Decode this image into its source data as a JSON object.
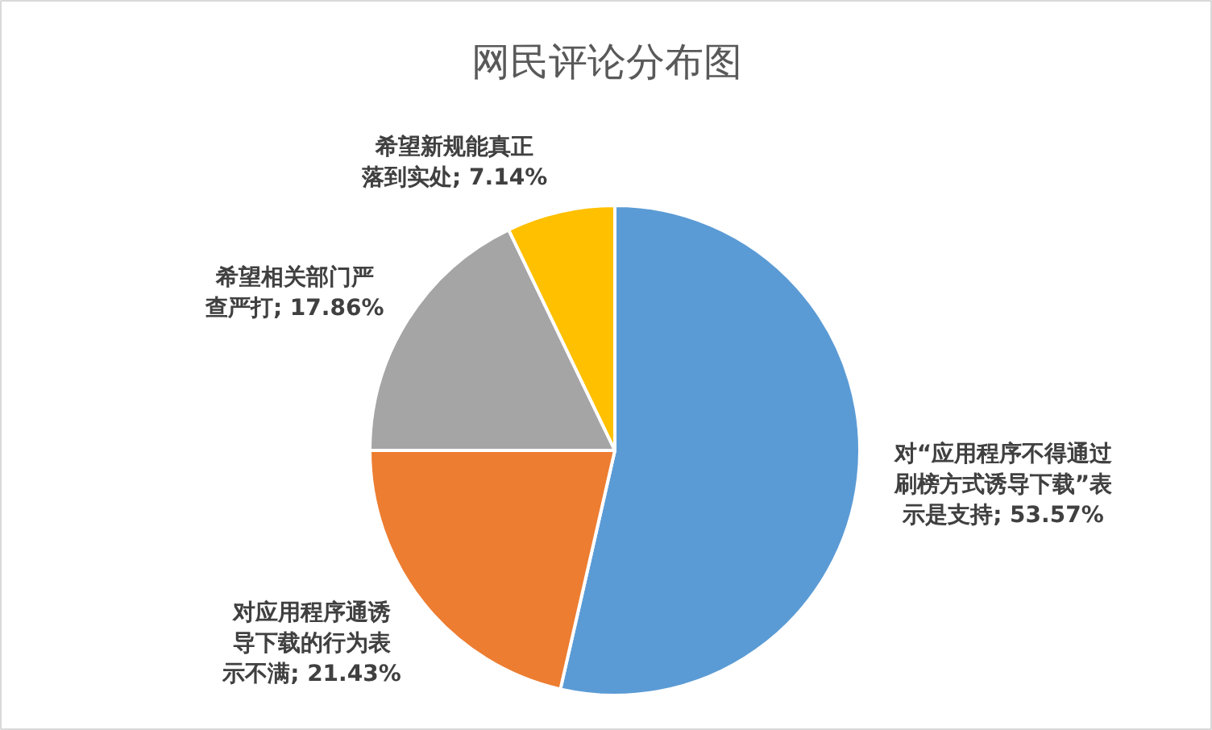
{
  "chart_data": {
    "type": "pie",
    "title": "网民评论分布图",
    "categories": [
      "对“应用程序不得通过刷榜方式诱导下载”表示是支持",
      "对应用程序通诱导下载的行为表示不满",
      "希望相关部门严查严打",
      "希望新规能真正落到实处"
    ],
    "values": [
      53.57,
      21.43,
      17.86,
      7.14
    ],
    "value_labels": [
      "53.57%",
      "21.43%",
      "17.86%",
      "7.14%"
    ],
    "colors": [
      "#5b9bd5",
      "#ed7d31",
      "#a5a5a5",
      "#ffc000"
    ]
  }
}
